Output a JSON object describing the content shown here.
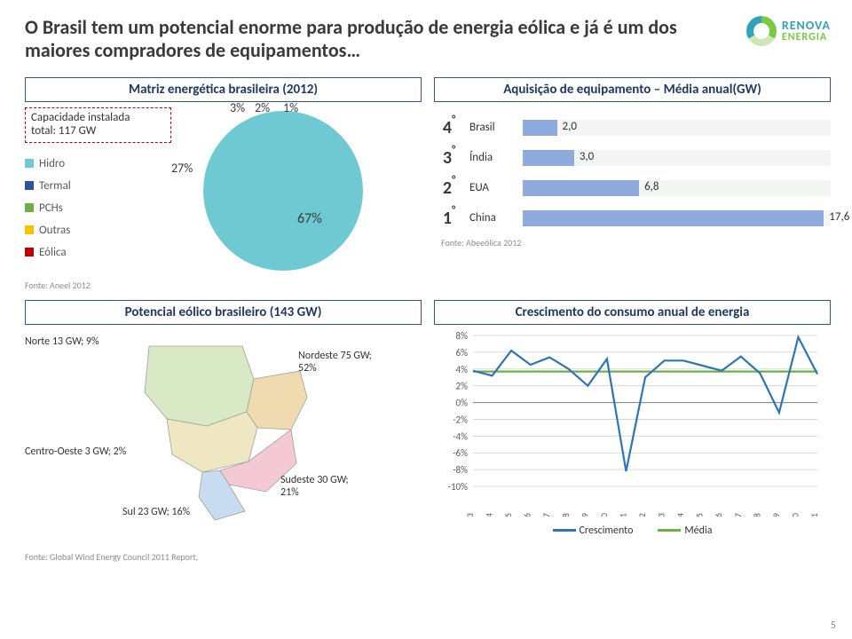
{
  "title": "O Brasil tem um potencial enorme para produção de energia eólica e já é um dos maiores compradores de equipamentos…",
  "logo": {
    "line1": "RENOVA",
    "line2": "ENERGIA"
  },
  "panels": {
    "matrix_title": "Matriz energética brasileira (2012)",
    "acquisition_title": "Aquisição de equipamento – Média anual(GW)",
    "potential_title": "Potencial eólico brasileiro (143 GW)",
    "growth_title": "Crescimento do consumo anual de energia"
  },
  "capacity_box": {
    "l1": "Capacidade instalada",
    "l2": "total: 117 GW"
  },
  "pie": {
    "type": "pie",
    "slices": [
      {
        "name": "Termal",
        "value": 27,
        "color": "#305496",
        "label": "27%"
      },
      {
        "name": "PCHs",
        "value": 3,
        "color": "#70ad47",
        "label": "3%"
      },
      {
        "name": "Outras",
        "value": 2,
        "color": "#ffc000",
        "label": "2%"
      },
      {
        "name": "Eólica",
        "value": 1,
        "color": "#c00000",
        "label": "1%"
      },
      {
        "name": "Hidro",
        "value": 67,
        "color": "#6fc9d3",
        "label": "67%"
      }
    ],
    "center_label": "67%"
  },
  "legend": [
    {
      "name": "Hidro",
      "color": "#6fc9d3"
    },
    {
      "name": "Termal",
      "color": "#305496"
    },
    {
      "name": "PCHs",
      "color": "#70ad47"
    },
    {
      "name": "Outras",
      "color": "#ffc000"
    },
    {
      "name": "Eólica",
      "color": "#c00000"
    }
  ],
  "pie_source": "Fonte: Aneel 2012",
  "acquisition": {
    "type": "bar",
    "max": 18,
    "bg": "#f3f5f2",
    "rows": [
      {
        "rank": "4",
        "country": "Brasil",
        "value": 2.0,
        "text": "2,0",
        "color": "#8faadc"
      },
      {
        "rank": "3",
        "country": "Índia",
        "value": 3.0,
        "text": "3,0",
        "color": "#8faadc"
      },
      {
        "rank": "2",
        "country": "EUA",
        "value": 6.8,
        "text": "6,8",
        "color": "#8faadc"
      },
      {
        "rank": "1",
        "country": "China",
        "value": 17.6,
        "text": "17,6",
        "color": "#8faadc"
      }
    ],
    "source": "Fonte: Abeeólica 2012"
  },
  "map": {
    "type": "infographic",
    "labels": {
      "norte": "Norte 13 GW; 9%",
      "nordeste": "Nordeste 75 GW; 52%",
      "centro": "Centro-Oeste 3 GW; 2%",
      "sudeste": "Sudeste 30 GW; 21%",
      "sul": "Sul 23 GW; 16%"
    },
    "colors": {
      "norte": "#d9e8c5",
      "nordeste": "#f0dab0",
      "centro": "#efe6c2",
      "sudeste": "#f5c9d4",
      "sul": "#c7dcef"
    },
    "source": "Fonte: Global Wind Energy Council 2011 Report,"
  },
  "growth": {
    "type": "line",
    "ylim": [
      -10,
      8
    ],
    "ytick_step": 2,
    "ylabels": [
      "8%",
      "6%",
      "4%",
      "2%",
      "0%",
      "-2%",
      "-4%",
      "-6%",
      "-8%",
      "-10%"
    ],
    "years": [
      "1993",
      "1994",
      "1995",
      "1996",
      "1997",
      "1998",
      "1999",
      "2000",
      "2001",
      "2002",
      "2003",
      "2004",
      "2005",
      "2006",
      "2007",
      "2008",
      "2009",
      "2010",
      "2011"
    ],
    "crescimento": [
      3.8,
      3.2,
      6.2,
      4.5,
      5.4,
      4.0,
      2.0,
      5.2,
      -8.2,
      3.0,
      5.0,
      5.0,
      4.4,
      3.8,
      5.5,
      3.5,
      -1.2,
      7.8,
      3.4
    ],
    "media": 3.7,
    "colors": {
      "crescimento": "#2e75b6",
      "media": "#70ad47",
      "grid": "#d0d0d0",
      "axis": "#8c8c8c",
      "text": "#595959"
    },
    "line_width": 2.2,
    "legend": {
      "crescimento": "Crescimento",
      "media": "Média"
    }
  },
  "pagenum": "5"
}
